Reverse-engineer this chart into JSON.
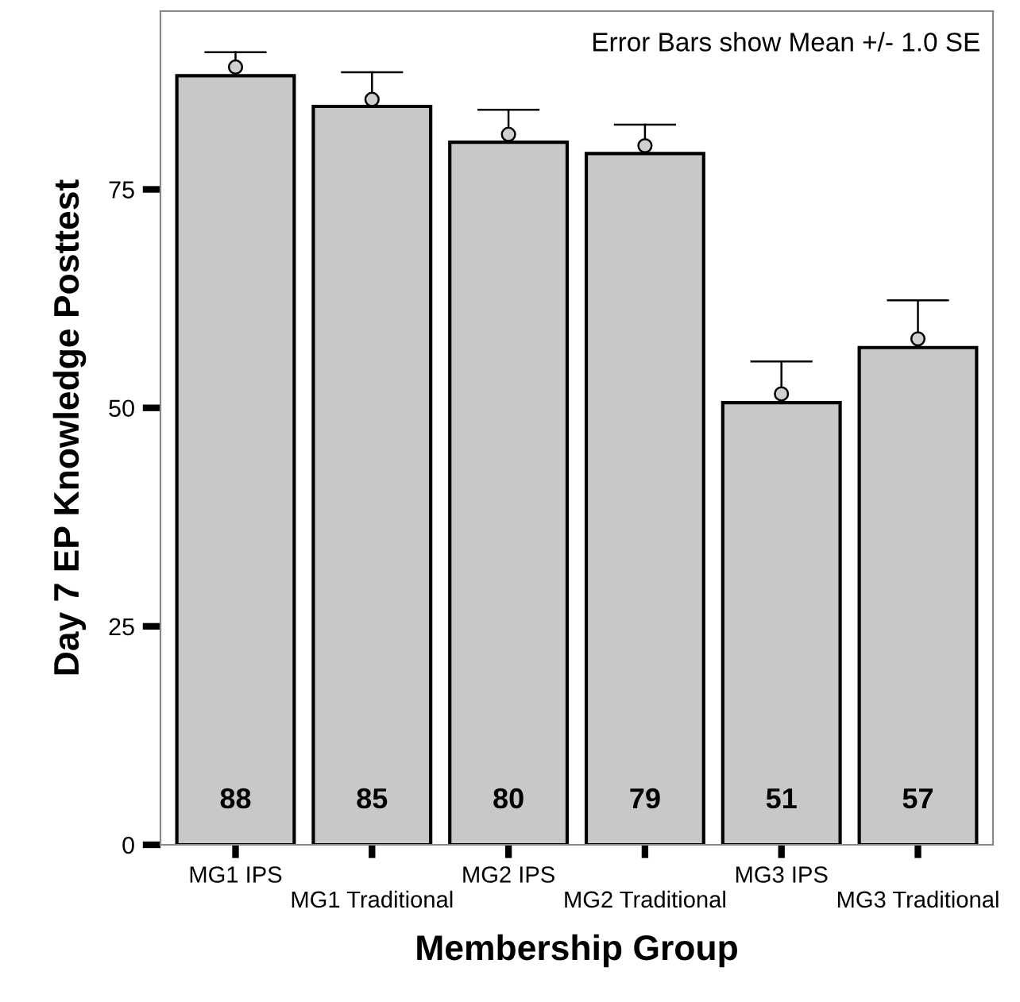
{
  "chart_data": {
    "type": "bar",
    "xlabel": "Membership Group",
    "ylabel": "Day 7 EP Knowledge Posttest",
    "categories": [
      "MG1 IPS",
      "MG1 Traditional",
      "MG2 IPS",
      "MG2 Traditional",
      "MG3 IPS",
      "MG3 Traditional"
    ],
    "series": [
      {
        "color": "#c8c8c8",
        "values": [
          88.0,
          84.5,
          80.4,
          79.1,
          50.6,
          56.9
        ],
        "value_labels": [
          "88",
          "85",
          "80",
          "79",
          "51",
          "57"
        ],
        "errors": [
          2.7,
          3.9,
          3.7,
          3.3,
          4.7,
          5.4
        ]
      },
      {
        "type": "scatter",
        "color": "#000000",
        "marker": "circle",
        "x": [
          "MG1 IPS",
          "MG1 Traditional",
          "MG2 IPS",
          "MG2 Traditional",
          "MG3 IPS",
          "MG3 Traditional"
        ],
        "values": [
          89.0,
          85.3,
          81.3,
          80.0,
          51.6,
          57.9
        ]
      }
    ],
    "ylim": [
      0,
      95.4
    ],
    "yticks": [
      0,
      25,
      50,
      75
    ],
    "grid": false,
    "legend": false,
    "annotations": [
      "Error Bars show Mean +/- 1.0 SE"
    ]
  }
}
